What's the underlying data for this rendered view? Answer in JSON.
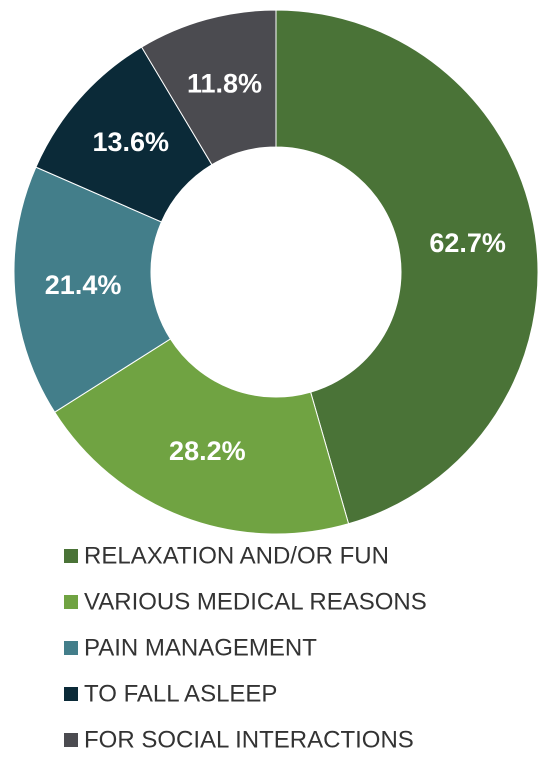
{
  "chart_data": {
    "type": "donut",
    "categories": [
      "RELAXATION AND/OR FUN",
      "VARIOUS MEDICAL REASONS",
      "PAIN MANAGEMENT",
      "TO FALL ASLEEP",
      "FOR SOCIAL INTERACTIONS"
    ],
    "values": [
      62.7,
      28.2,
      21.4,
      13.6,
      11.8
    ],
    "value_labels": [
      "62.7%",
      "28.2%",
      "21.4%",
      "13.6%",
      "11.8%"
    ],
    "colors": [
      "#4a7337",
      "#70a342",
      "#437e8a",
      "#0b2a38",
      "#4b4b50"
    ],
    "legend": "bottom"
  }
}
